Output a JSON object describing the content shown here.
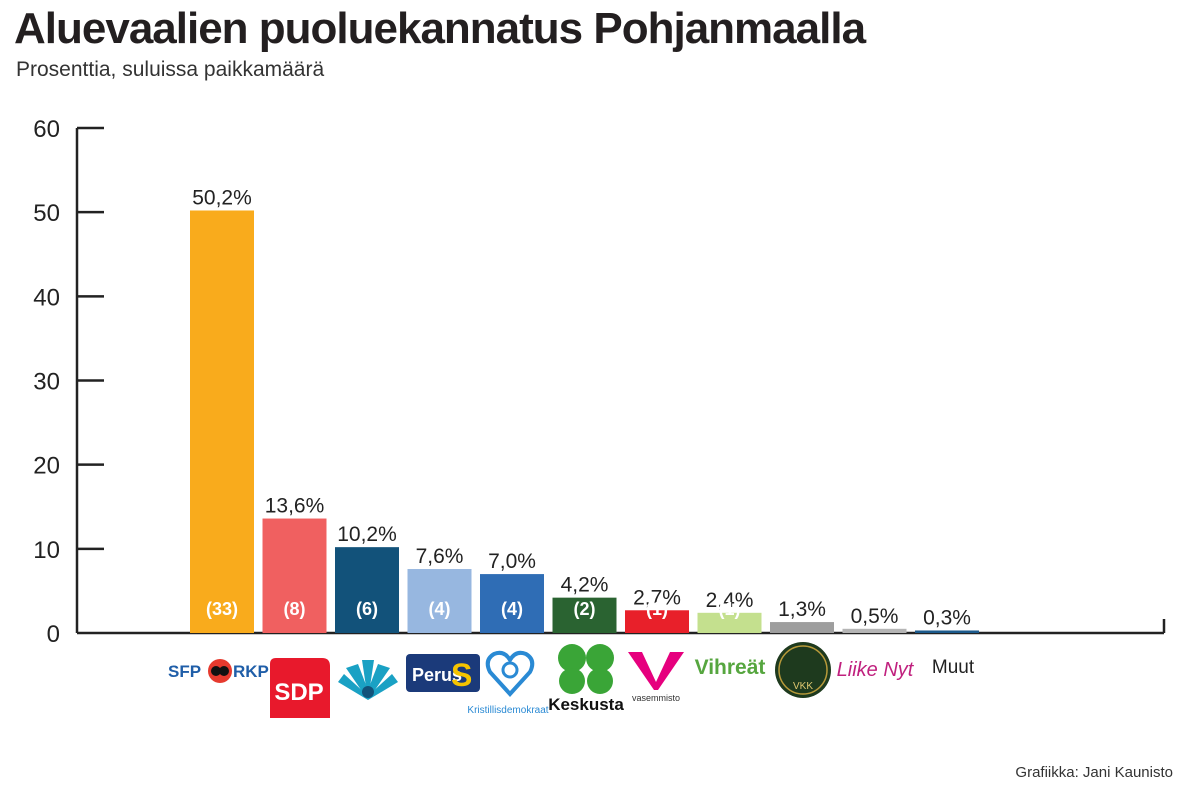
{
  "title": "Aluevaalien puoluekannatus Pohjanmaalla",
  "subtitle": "Prosenttia, suluissa paikkamäärä",
  "credit": "Grafiikka: Jani Kaunisto",
  "chart_data": {
    "type": "bar",
    "title": "Aluevaalien puoluekannatus Pohjanmaalla",
    "subtitle": "Prosenttia, suluissa paikkamäärä",
    "ylim": [
      0,
      60
    ],
    "yticks": [
      0,
      10,
      20,
      30,
      40,
      50,
      60
    ],
    "grid": false,
    "categories": [
      "SFP RKP",
      "SDP",
      "Kokoomus",
      "Perussuomalaiset",
      "Kristillisdemokraatit",
      "Keskusta",
      "Vasemmisto",
      "Vihreät",
      "VKK",
      "Liike Nyt",
      "Muut"
    ],
    "values": [
      50.2,
      13.6,
      10.2,
      7.6,
      7.0,
      4.2,
      2.7,
      2.4,
      1.3,
      0.5,
      0.3
    ],
    "value_labels": [
      "50,2%",
      "13,6%",
      "10,2%",
      "7,6%",
      "7,0%",
      "4,2%",
      "2,7%",
      "2,4%",
      "1,3%",
      "0,5%",
      "0,3%"
    ],
    "seat_labels": [
      "(33)",
      "(8)",
      "(6)",
      "(4)",
      "(4)",
      "(2)",
      "(1)",
      "(1)",
      "",
      "",
      ""
    ],
    "colors": [
      "#f9ab1c",
      "#f06060",
      "#12527a",
      "#97b7e0",
      "#2f6db5",
      "#2a6331",
      "#e8202a",
      "#c4e08e",
      "#9e9e9e",
      "#b5b5b5",
      "#1c5a8c"
    ]
  },
  "logos": {
    "sfp": "SFP",
    "rkp": "RKP",
    "sdp": "SDP",
    "perus": "Perus",
    "kd": "Kristillisdemokraat",
    "keskusta": "Keskusta",
    "vasemmisto": "vasemmisto",
    "vihreat": "Vihreät",
    "vkk": "VKK",
    "liike_nyt": "Liike Nyt",
    "muut": "Muut"
  }
}
